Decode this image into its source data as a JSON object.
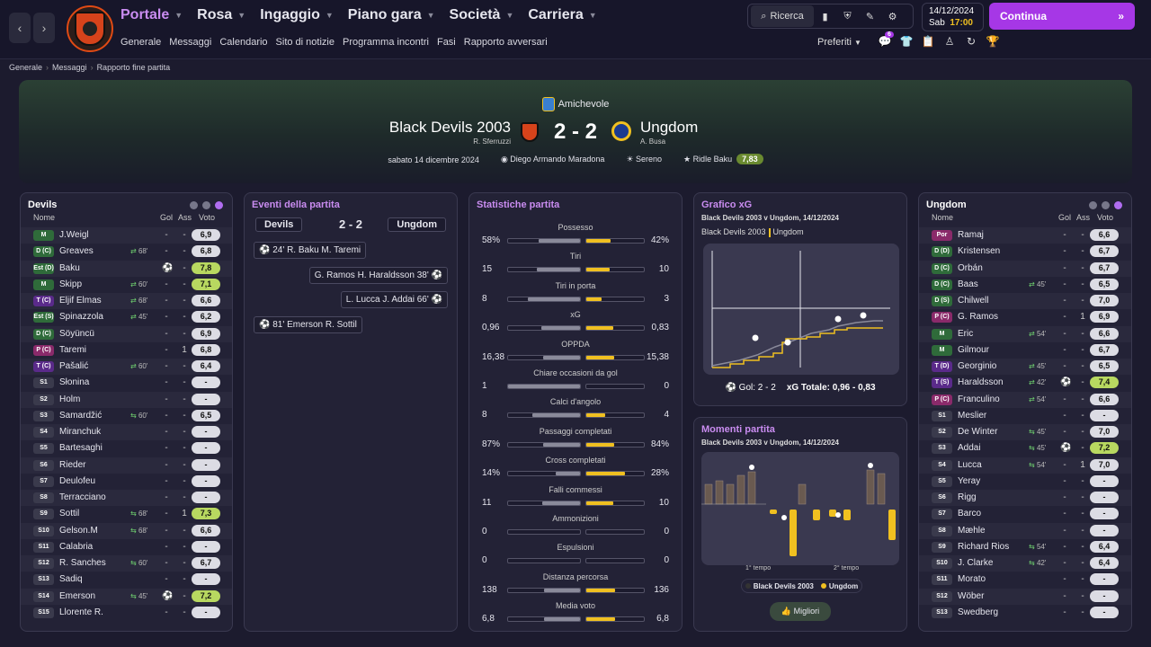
{
  "nav": {
    "back": "‹",
    "forward": "›"
  },
  "menu": [
    {
      "label": "Portale",
      "active": true
    },
    {
      "label": "Rosa"
    },
    {
      "label": "Ingaggio"
    },
    {
      "label": "Piano gara"
    },
    {
      "label": "Società"
    },
    {
      "label": "Carriera"
    }
  ],
  "submenu": [
    "Generale",
    "Messaggi",
    "Calendario",
    "Sito di notizie",
    "Programma incontri",
    "Fasi",
    "Rapporto avversari"
  ],
  "search": {
    "label": "Ricerca"
  },
  "date": {
    "date": "14/12/2024",
    "day": "Sab",
    "time": "17:00"
  },
  "continue": {
    "label": "Continua"
  },
  "prefs": {
    "label": "Preferiti",
    "badge": "6"
  },
  "breadcrumb": [
    "Generale",
    "Messaggi",
    "Rapporto fine partita"
  ],
  "match": {
    "competition": "Amichevole",
    "home": "Black Devils 2003",
    "home_coach": "R. Sferruzzi",
    "away": "Ungdom",
    "away_coach": "A. Busa",
    "score": "2 - 2",
    "date": "sabato 14 dicembre 2024",
    "stadium": "Diego Armando Maradona",
    "weather": "Sereno",
    "pom": "Ridle Baku",
    "pom_rating": "7,83"
  },
  "home_panel": {
    "title": "Devils",
    "headers": {
      "name": "Nome",
      "gol": "Gol",
      "ass": "Ass",
      "voto": "Voto"
    },
    "rows": [
      {
        "pos": "M",
        "name": "J.Weigl",
        "sub": "",
        "gol": "-",
        "ass": "-",
        "voto": "6,9"
      },
      {
        "pos": "D (C)",
        "name": "Greaves",
        "sub": "68'",
        "dir": "out",
        "gol": "-",
        "ass": "-",
        "voto": "6,8"
      },
      {
        "pos": "Est (D)",
        "name": "Baku",
        "sub": "",
        "gol": "⚽",
        "ass": "-",
        "voto": "7,8",
        "hi": true
      },
      {
        "pos": "M",
        "name": "Skipp",
        "sub": "60'",
        "dir": "out",
        "gol": "-",
        "ass": "-",
        "voto": "7,1",
        "hi": true
      },
      {
        "pos": "T (C)",
        "name": "Eljif Elmas",
        "sub": "68'",
        "dir": "out",
        "gol": "-",
        "ass": "-",
        "voto": "6,6"
      },
      {
        "pos": "Est (S)",
        "name": "Spinazzola",
        "sub": "45'",
        "dir": "out",
        "gol": "-",
        "ass": "-",
        "voto": "6,2"
      },
      {
        "pos": "D (C)",
        "name": "Söyüncü",
        "sub": "",
        "gol": "-",
        "ass": "-",
        "voto": "6,9"
      },
      {
        "pos": "P (C)",
        "name": "Taremi",
        "sub": "",
        "gol": "-",
        "ass": "1",
        "voto": "6,8"
      },
      {
        "pos": "T (C)",
        "name": "Pašalić",
        "sub": "60'",
        "dir": "out",
        "gol": "-",
        "ass": "-",
        "voto": "6,4"
      },
      {
        "pos": "S1",
        "name": "Słonina",
        "sub": "",
        "gol": "-",
        "ass": "-",
        "voto": "-"
      },
      {
        "pos": "S2",
        "name": "Holm",
        "sub": "",
        "gol": "-",
        "ass": "-",
        "voto": "-"
      },
      {
        "pos": "S3",
        "name": "Samardžić",
        "sub": "60'",
        "dir": "in",
        "gol": "-",
        "ass": "-",
        "voto": "6,5"
      },
      {
        "pos": "S4",
        "name": "Miranchuk",
        "sub": "",
        "gol": "-",
        "ass": "-",
        "voto": "-"
      },
      {
        "pos": "S5",
        "name": "Bartesaghi",
        "sub": "",
        "gol": "-",
        "ass": "-",
        "voto": "-"
      },
      {
        "pos": "S6",
        "name": "Rieder",
        "sub": "",
        "gol": "-",
        "ass": "-",
        "voto": "-"
      },
      {
        "pos": "S7",
        "name": "Deulofeu",
        "sub": "",
        "gol": "-",
        "ass": "-",
        "voto": "-"
      },
      {
        "pos": "S8",
        "name": "Terracciano",
        "sub": "",
        "gol": "-",
        "ass": "-",
        "voto": "-"
      },
      {
        "pos": "S9",
        "name": "Sottil",
        "sub": "68'",
        "dir": "in",
        "gol": "-",
        "ass": "1",
        "voto": "7,3",
        "hi": true
      },
      {
        "pos": "S10",
        "name": "Gelson.M",
        "sub": "68'",
        "dir": "in",
        "gol": "-",
        "ass": "-",
        "voto": "6,6"
      },
      {
        "pos": "S11",
        "name": "Calabria",
        "sub": "",
        "gol": "-",
        "ass": "-",
        "voto": "-"
      },
      {
        "pos": "S12",
        "name": "R. Sanches",
        "sub": "60'",
        "dir": "in",
        "gol": "-",
        "ass": "-",
        "voto": "6,7"
      },
      {
        "pos": "S13",
        "name": "Sadiq",
        "sub": "",
        "gol": "-",
        "ass": "-",
        "voto": "-"
      },
      {
        "pos": "S14",
        "name": "Emerson",
        "sub": "45'",
        "dir": "in",
        "gol": "⚽",
        "ass": "-",
        "voto": "7,2",
        "hi": true
      },
      {
        "pos": "S15",
        "name": "Llorente R.",
        "sub": "",
        "gol": "-",
        "ass": "-",
        "voto": "-"
      }
    ]
  },
  "away_panel": {
    "title": "Ungdom",
    "headers": {
      "name": "Nome",
      "gol": "Gol",
      "ass": "Ass",
      "voto": "Voto"
    },
    "rows": [
      {
        "pos": "Por",
        "name": "Ramaj",
        "sub": "",
        "gol": "-",
        "ass": "-",
        "voto": "6,6"
      },
      {
        "pos": "D (D)",
        "name": "Kristensen",
        "sub": "",
        "gol": "-",
        "ass": "-",
        "voto": "6,7"
      },
      {
        "pos": "D (C)",
        "name": "Orbán",
        "sub": "",
        "gol": "-",
        "ass": "-",
        "voto": "6,7"
      },
      {
        "pos": "D (C)",
        "name": "Baas",
        "sub": "45'",
        "dir": "out",
        "gol": "-",
        "ass": "-",
        "voto": "6,5"
      },
      {
        "pos": "D (S)",
        "name": "Chilwell",
        "sub": "",
        "gol": "-",
        "ass": "-",
        "voto": "7,0"
      },
      {
        "pos": "P (C)",
        "name": "G. Ramos",
        "sub": "",
        "gol": "-",
        "ass": "1",
        "voto": "6,9"
      },
      {
        "pos": "M",
        "name": "Eric",
        "sub": "54'",
        "dir": "out",
        "gol": "-",
        "ass": "-",
        "voto": "6,6"
      },
      {
        "pos": "M",
        "name": "Gilmour",
        "sub": "",
        "gol": "-",
        "ass": "-",
        "voto": "6,7"
      },
      {
        "pos": "T (D)",
        "name": "Georginio",
        "sub": "45'",
        "dir": "out",
        "gol": "-",
        "ass": "-",
        "voto": "6,5"
      },
      {
        "pos": "T (S)",
        "name": "Haraldsson",
        "sub": "42'",
        "dir": "out",
        "gol": "⚽",
        "ass": "-",
        "voto": "7,4",
        "hi": true
      },
      {
        "pos": "P (C)",
        "name": "Franculino",
        "sub": "54'",
        "dir": "out",
        "gol": "-",
        "ass": "-",
        "voto": "6,6"
      },
      {
        "pos": "S1",
        "name": "Meslier",
        "sub": "",
        "gol": "-",
        "ass": "-",
        "voto": "-"
      },
      {
        "pos": "S2",
        "name": "De Winter",
        "sub": "45'",
        "dir": "in",
        "gol": "-",
        "ass": "-",
        "voto": "7,0"
      },
      {
        "pos": "S3",
        "name": "Addai",
        "sub": "45'",
        "dir": "in",
        "gol": "⚽",
        "ass": "-",
        "voto": "7,2",
        "hi": true
      },
      {
        "pos": "S4",
        "name": "Lucca",
        "sub": "54'",
        "dir": "in",
        "gol": "-",
        "ass": "1",
        "voto": "7,0"
      },
      {
        "pos": "S5",
        "name": "Yeray",
        "sub": "",
        "gol": "-",
        "ass": "-",
        "voto": "-"
      },
      {
        "pos": "S6",
        "name": "Rigg",
        "sub": "",
        "gol": "-",
        "ass": "-",
        "voto": "-"
      },
      {
        "pos": "S7",
        "name": "Barco",
        "sub": "",
        "gol": "-",
        "ass": "-",
        "voto": "-"
      },
      {
        "pos": "S8",
        "name": "Mæhle",
        "sub": "",
        "gol": "-",
        "ass": "-",
        "voto": "-"
      },
      {
        "pos": "S9",
        "name": "Richard Rios",
        "sub": "54'",
        "dir": "in",
        "gol": "-",
        "ass": "-",
        "voto": "6,4"
      },
      {
        "pos": "S10",
        "name": "J. Clarke",
        "sub": "42'",
        "dir": "in",
        "gol": "-",
        "ass": "-",
        "voto": "6,4"
      },
      {
        "pos": "S11",
        "name": "Morato",
        "sub": "",
        "gol": "-",
        "ass": "-",
        "voto": "-"
      },
      {
        "pos": "S12",
        "name": "Wöber",
        "sub": "",
        "gol": "-",
        "ass": "-",
        "voto": "-"
      },
      {
        "pos": "S13",
        "name": "Swedberg",
        "sub": "",
        "gol": "-",
        "ass": "-",
        "voto": "-"
      }
    ]
  },
  "events": {
    "title": "Eventi della partita",
    "home": "Devils",
    "away": "Ungdom",
    "score": "2 - 2",
    "items": [
      {
        "side": "home",
        "minute": "24'",
        "text": "R. Baku M. Taremi"
      },
      {
        "side": "away",
        "minute": "38'",
        "text": "G. Ramos H. Haraldsson"
      },
      {
        "side": "away",
        "minute": "66'",
        "text": "L. Lucca J. Addai"
      },
      {
        "side": "home",
        "minute": "81'",
        "text": "Emerson R. Sottil"
      }
    ]
  },
  "stats": {
    "title": "Statistiche partita",
    "rows": [
      {
        "label": "Possesso",
        "home": "58%",
        "away": "42%",
        "h": 58,
        "a": 42
      },
      {
        "label": "Tiri",
        "home": "15",
        "away": "10",
        "h": 15,
        "a": 10
      },
      {
        "label": "Tiri in porta",
        "home": "8",
        "away": "3",
        "h": 8,
        "a": 3
      },
      {
        "label": "xG",
        "home": "0,96",
        "away": "0,83",
        "h": 0.96,
        "a": 0.83
      },
      {
        "label": "OPPDA",
        "home": "16,38",
        "away": "15,38",
        "h": 16.38,
        "a": 15.38
      },
      {
        "label": "Chiare occasioni da gol",
        "home": "1",
        "away": "0",
        "h": 1,
        "a": 0
      },
      {
        "label": "Calci d'angolo",
        "home": "8",
        "away": "4",
        "h": 8,
        "a": 4
      },
      {
        "label": "Passaggi completati",
        "home": "87%",
        "away": "84%",
        "h": 87,
        "a": 84
      },
      {
        "label": "Cross completati",
        "home": "14%",
        "away": "28%",
        "h": 14,
        "a": 28
      },
      {
        "label": "Falli commessi",
        "home": "11",
        "away": "10",
        "h": 11,
        "a": 10
      },
      {
        "label": "Ammonizioni",
        "home": "0",
        "away": "0",
        "h": 0,
        "a": 0
      },
      {
        "label": "Espulsioni",
        "home": "0",
        "away": "0",
        "h": 0,
        "a": 0
      },
      {
        "label": "Distanza percorsa",
        "home": "138",
        "away": "136",
        "h": 138,
        "a": 136
      },
      {
        "label": "Media voto",
        "home": "6,8",
        "away": "6,8",
        "h": 6.8,
        "a": 6.8
      }
    ]
  },
  "xg": {
    "title": "Grafico xG",
    "subtitle": "Black Devils 2003 v Ungdom, 14/12/2024",
    "legend_home": "Black Devils 2003",
    "legend_away": "Ungdom",
    "goals_label": "Gol: 2 - 2",
    "xg_label": "xG Totale: 0,96 - 0,83"
  },
  "moments": {
    "title": "Momenti partita",
    "subtitle": "Black Devils 2003 v Ungdom, 14/12/2024",
    "first_half": "1° tempo",
    "second_half": "2° tempo",
    "legend_home": "Black Devils 2003",
    "legend_away": "Ungdom",
    "best": "Migliori"
  },
  "colors": {
    "accent": "#a637e6",
    "home": "#8a8a9a",
    "away": "#f0c020",
    "menu_active": "#c98cf0"
  }
}
